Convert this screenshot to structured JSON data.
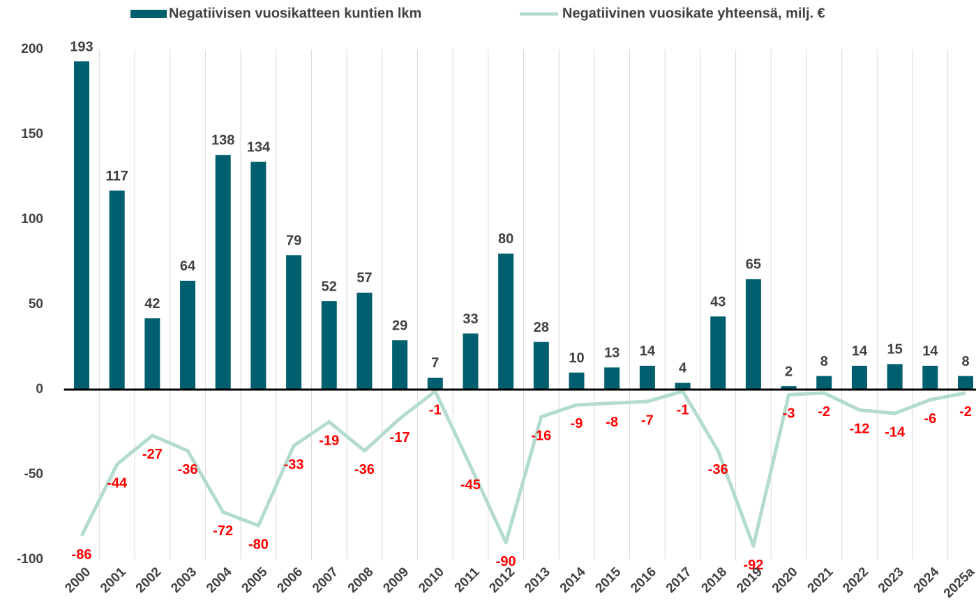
{
  "chart_data": {
    "type": "bar",
    "categories": [
      "2000",
      "2001",
      "2002",
      "2003",
      "2004",
      "2005",
      "2006",
      "2007",
      "2008",
      "2009",
      "2010",
      "2011",
      "2012",
      "2013",
      "2014",
      "2015",
      "2016",
      "2017",
      "2018",
      "2019",
      "2020",
      "2021",
      "2022",
      "2023",
      "2024",
      "2025a"
    ],
    "series": [
      {
        "name": "Negatiivisen vuosikatteen kuntien lkm",
        "type": "bar",
        "color": "#005f6e",
        "values": [
          193,
          117,
          42,
          64,
          138,
          134,
          79,
          52,
          57,
          29,
          7,
          33,
          80,
          28,
          10,
          13,
          14,
          4,
          43,
          65,
          2,
          8,
          14,
          15,
          14,
          8
        ]
      },
      {
        "name": "Negatiivinen vuosikate yhteensä, milj. €",
        "type": "line",
        "color": "#b3dccf",
        "values": [
          -86,
          -44,
          -27,
          -36,
          -72,
          -80,
          -33,
          -19,
          -36,
          -17,
          -1,
          -45,
          -90,
          -16,
          -9,
          -8,
          -7,
          -1,
          -36,
          -92,
          -3,
          -2,
          -12,
          -14,
          -6,
          -2
        ]
      }
    ],
    "ylim": [
      -100,
      200
    ],
    "yticks": [
      200,
      150,
      100,
      50,
      0,
      -50,
      -100
    ],
    "grid": true,
    "legend": "top"
  }
}
